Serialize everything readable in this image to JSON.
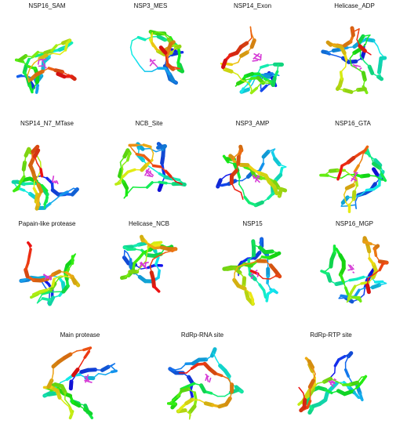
{
  "rows": [
    [
      "NSP16_SAM",
      "NSP3_MES",
      "NSP14_Exon",
      "Helicase_ADP"
    ],
    [
      "NSP14_N7_MTase",
      "NCB_Site",
      "NSP3_AMP",
      "NSP16_GTA"
    ],
    [
      "Papain-like protease",
      "Helicase_NCB",
      "NSP15",
      "NSP16_MGP"
    ],
    [
      "Main protease",
      "RdRp-RNA site",
      "RdRp-RTP site"
    ]
  ]
}
